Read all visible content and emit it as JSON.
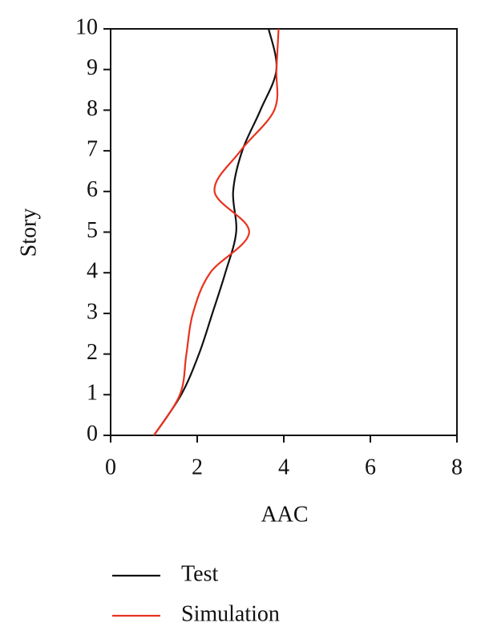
{
  "chart_data": {
    "type": "line",
    "xlabel": "AAC",
    "ylabel": "Story",
    "y": [
      0,
      1,
      2,
      3,
      4,
      5,
      6,
      7,
      8,
      9,
      10
    ],
    "series": [
      {
        "name": "Test",
        "color": "#111111",
        "x": [
          1.0,
          1.63,
          2.04,
          2.35,
          2.65,
          2.9,
          2.83,
          3.04,
          3.46,
          3.83,
          3.65
        ]
      },
      {
        "name": "Simulation",
        "color": "#e8321e",
        "x": [
          1.0,
          1.6,
          1.75,
          1.9,
          2.3,
          3.2,
          2.4,
          3.0,
          3.78,
          3.83,
          3.88
        ]
      }
    ],
    "xlim": [
      0,
      8
    ],
    "xticks": [
      0,
      2,
      4,
      6,
      8
    ],
    "ylim": [
      0,
      10
    ],
    "yticks": [
      0,
      1,
      2,
      3,
      4,
      5,
      6,
      7,
      8,
      9,
      10
    ]
  }
}
